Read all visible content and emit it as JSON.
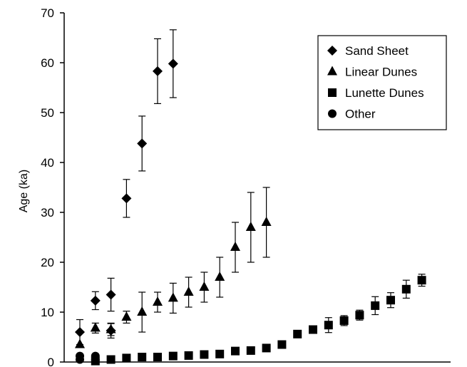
{
  "chart_data": {
    "type": "scatter",
    "ylabel": "Age (ka)",
    "xlabel": "",
    "ylim": [
      0,
      70
    ],
    "yticks": [
      0,
      10,
      20,
      30,
      40,
      50,
      60,
      70
    ],
    "x_tick_labels": false,
    "legend": {
      "placement": "top-right",
      "entries": [
        "Sand Sheet",
        "Linear Dunes",
        "Lunette Dunes",
        "Other"
      ]
    },
    "series": [
      {
        "name": "Sand Sheet",
        "marker": "diamond",
        "points": [
          {
            "x": 1,
            "y": 6.0,
            "err": 2.5
          },
          {
            "x": 2,
            "y": 12.3,
            "err": 1.8
          },
          {
            "x": 3,
            "y": 6.3,
            "err": 1.5
          },
          {
            "x": 3,
            "y": 13.5,
            "err": 3.3
          },
          {
            "x": 4,
            "y": 32.8,
            "err": 3.8
          },
          {
            "x": 5,
            "y": 43.8,
            "err": 5.5
          },
          {
            "x": 6,
            "y": 58.3,
            "err": 6.5
          },
          {
            "x": 7,
            "y": 59.8,
            "err": 6.8
          }
        ]
      },
      {
        "name": "Linear Dunes",
        "marker": "triangle",
        "points": [
          {
            "x": 1,
            "y": 3.5,
            "err": 0
          },
          {
            "x": 2,
            "y": 6.8,
            "err": 1.0
          },
          {
            "x": 3,
            "y": 6.5,
            "err": 1.2
          },
          {
            "x": 4,
            "y": 9.0,
            "err": 1.2
          },
          {
            "x": 5,
            "y": 10.0,
            "err": 4.0
          },
          {
            "x": 6,
            "y": 12.0,
            "err": 2.0
          },
          {
            "x": 7,
            "y": 12.8,
            "err": 3.0
          },
          {
            "x": 8,
            "y": 14.0,
            "err": 3.0
          },
          {
            "x": 9,
            "y": 15.0,
            "err": 3.0
          },
          {
            "x": 10,
            "y": 17.0,
            "err": 4.0
          },
          {
            "x": 11,
            "y": 23.0,
            "err": 5.0
          },
          {
            "x": 12,
            "y": 27.0,
            "err": 7.0
          },
          {
            "x": 13,
            "y": 28.0,
            "err": 7.0
          }
        ]
      },
      {
        "name": "Lunette Dunes",
        "marker": "square",
        "points": [
          {
            "x": 2,
            "y": 0.2,
            "err": 0
          },
          {
            "x": 3,
            "y": 0.5,
            "err": 0
          },
          {
            "x": 4,
            "y": 0.8,
            "err": 0
          },
          {
            "x": 5,
            "y": 1.0,
            "err": 0
          },
          {
            "x": 6,
            "y": 1.0,
            "err": 0
          },
          {
            "x": 7,
            "y": 1.2,
            "err": 0
          },
          {
            "x": 8,
            "y": 1.3,
            "err": 0
          },
          {
            "x": 9,
            "y": 1.5,
            "err": 0
          },
          {
            "x": 10,
            "y": 1.6,
            "err": 0
          },
          {
            "x": 11,
            "y": 2.2,
            "err": 0
          },
          {
            "x": 12,
            "y": 2.3,
            "err": 0
          },
          {
            "x": 13,
            "y": 2.8,
            "err": 0
          },
          {
            "x": 14,
            "y": 3.5,
            "err": 0
          },
          {
            "x": 15,
            "y": 5.6,
            "err": 0
          },
          {
            "x": 16,
            "y": 6.5,
            "err": 0
          },
          {
            "x": 17,
            "y": 7.4,
            "err": 1.5
          },
          {
            "x": 18,
            "y": 8.3,
            "err": 1.0
          },
          {
            "x": 19,
            "y": 9.4,
            "err": 1.0
          },
          {
            "x": 20,
            "y": 11.3,
            "err": 1.8
          },
          {
            "x": 21,
            "y": 12.4,
            "err": 1.5
          },
          {
            "x": 22,
            "y": 14.6,
            "err": 1.8
          },
          {
            "x": 23,
            "y": 16.4,
            "err": 1.2
          }
        ]
      },
      {
        "name": "Other",
        "marker": "circle",
        "points": [
          {
            "x": 1,
            "y": 1.2,
            "err": 0
          },
          {
            "x": 1,
            "y": 0.5,
            "err": 0
          },
          {
            "x": 2,
            "y": 1.2,
            "err": 0
          },
          {
            "x": 2,
            "y": 0.4,
            "err": 0
          }
        ]
      }
    ]
  }
}
